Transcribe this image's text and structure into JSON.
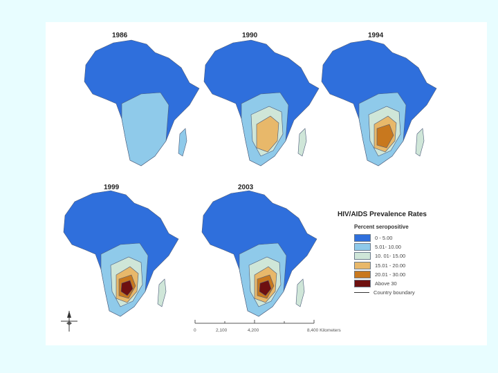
{
  "maps": [
    {
      "year": "1986",
      "classes": [
        "A",
        "B"
      ]
    },
    {
      "year": "1990",
      "classes": [
        "A",
        "B",
        "C",
        "D"
      ]
    },
    {
      "year": "1994",
      "classes": [
        "A",
        "B",
        "C",
        "D",
        "E"
      ]
    },
    {
      "year": "1999",
      "classes": [
        "A",
        "B",
        "C",
        "D",
        "E",
        "F"
      ]
    },
    {
      "year": "2003",
      "classes": [
        "A",
        "B",
        "C",
        "D",
        "E",
        "F"
      ]
    }
  ],
  "legend": {
    "title": "HIV/AIDS Prevalence Rates",
    "subtitle": "Percent seropositive",
    "classes": [
      {
        "label": "0 - 5.00",
        "color": "#2f6fdc"
      },
      {
        "label": "5.01- 10.00",
        "color": "#8fcaea"
      },
      {
        "label": "10. 01- 15.00",
        "color": "#cfe6d8"
      },
      {
        "label": "15.01 - 20.00",
        "color": "#e8b86a"
      },
      {
        "label": "20.01 - 30.00",
        "color": "#c8781e"
      },
      {
        "label": "Above 30",
        "color": "#6e1010"
      }
    ],
    "boundary_label": "Country boundary"
  },
  "scale_bar": {
    "ticks": [
      "0",
      "2,100",
      "4,200",
      "8,400 Kilometers"
    ]
  }
}
